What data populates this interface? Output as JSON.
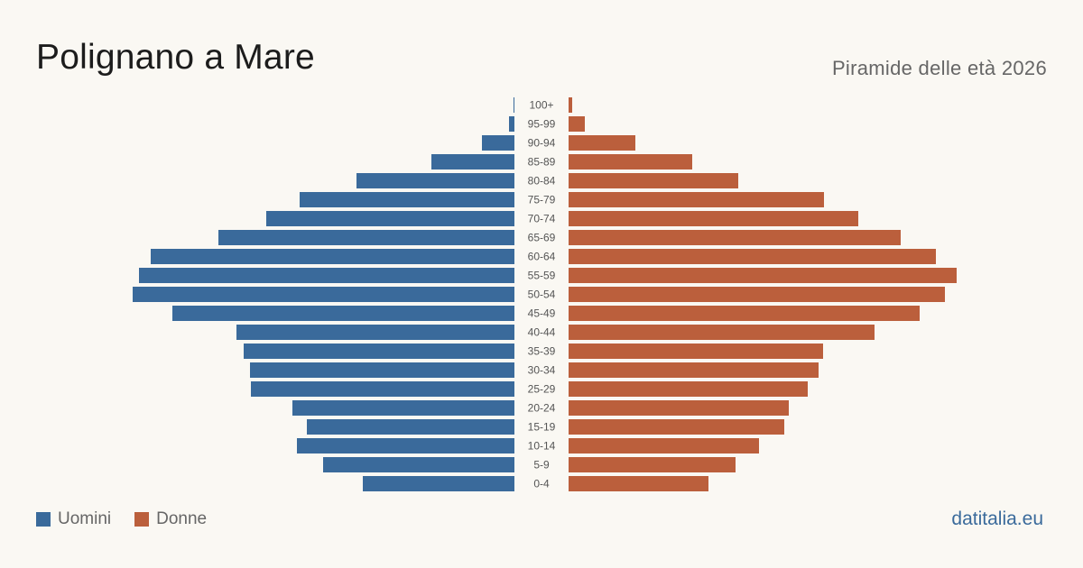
{
  "header": {
    "title": "Polignano a Mare",
    "subtitle": "Piramide delle età 2026"
  },
  "legend": {
    "men_label": "Uomini",
    "women_label": "Donne"
  },
  "footer": {
    "brand": "datitalia.eu"
  },
  "colors": {
    "men": "#3a6a9b",
    "women": "#bb5f3c",
    "brand": "#3a6a9b"
  },
  "chart_data": {
    "type": "bar",
    "orientation": "horizontal-pyramid",
    "title": "Polignano a Mare",
    "subtitle": "Piramide delle età 2026",
    "categories": [
      "100+",
      "95-99",
      "90-94",
      "85-89",
      "80-84",
      "75-79",
      "70-74",
      "65-69",
      "60-64",
      "55-59",
      "50-54",
      "45-49",
      "40-44",
      "35-39",
      "30-34",
      "25-29",
      "20-24",
      "15-19",
      "10-14",
      "5-9",
      "0-4"
    ],
    "series": [
      {
        "name": "Uomini",
        "side": "left",
        "values": [
          1,
          6,
          36,
          92,
          175,
          238,
          275,
          328,
          403,
          416,
          423,
          379,
          308,
          300,
          293,
          292,
          246,
          230,
          241,
          212,
          168
        ]
      },
      {
        "name": "Donne",
        "side": "right",
        "values": [
          4,
          18,
          74,
          137,
          188,
          283,
          321,
          368,
          407,
          430,
          417,
          389,
          339,
          282,
          277,
          265,
          244,
          239,
          211,
          185,
          155
        ]
      }
    ],
    "legend_position": "bottom-left",
    "grid": false
  }
}
